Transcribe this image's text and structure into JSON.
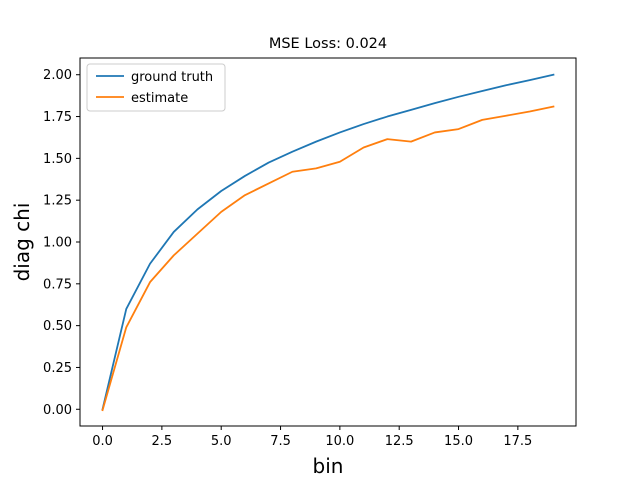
{
  "chart_data": {
    "type": "line",
    "title": "MSE Loss: 0.024",
    "xlabel": "bin",
    "ylabel": "diag chi",
    "xlim": [
      -0.95,
      19.95
    ],
    "ylim": [
      -0.1,
      2.1
    ],
    "xticks": [
      0.0,
      2.5,
      5.0,
      7.5,
      10.0,
      12.5,
      15.0,
      17.5
    ],
    "xtick_labels": [
      "0.0",
      "2.5",
      "5.0",
      "7.5",
      "10.0",
      "12.5",
      "15.0",
      "17.5"
    ],
    "yticks": [
      0.0,
      0.25,
      0.5,
      0.75,
      1.0,
      1.25,
      1.5,
      1.75,
      2.0
    ],
    "ytick_labels": [
      "0.00",
      "0.25",
      "0.50",
      "0.75",
      "1.00",
      "1.25",
      "1.50",
      "1.75",
      "2.00"
    ],
    "grid": false,
    "legend_position": "upper-left",
    "x": [
      0,
      1,
      2,
      3,
      4,
      5,
      6,
      7,
      8,
      9,
      10,
      11,
      12,
      13,
      14,
      15,
      16,
      17,
      18,
      19
    ],
    "series": [
      {
        "name": "ground truth",
        "color": "#1f77b4",
        "values": [
          0.0,
          0.6,
          0.87,
          1.06,
          1.195,
          1.305,
          1.395,
          1.475,
          1.54,
          1.6,
          1.655,
          1.705,
          1.75,
          1.79,
          1.83,
          1.868,
          1.903,
          1.937,
          1.968,
          2.0
        ]
      },
      {
        "name": "estimate",
        "color": "#ff7f0e",
        "values": [
          -0.005,
          0.49,
          0.76,
          0.92,
          1.05,
          1.18,
          1.28,
          1.35,
          1.42,
          1.44,
          1.48,
          1.565,
          1.615,
          1.6,
          1.655,
          1.675,
          1.73,
          1.755,
          1.78,
          1.81
        ]
      }
    ]
  }
}
